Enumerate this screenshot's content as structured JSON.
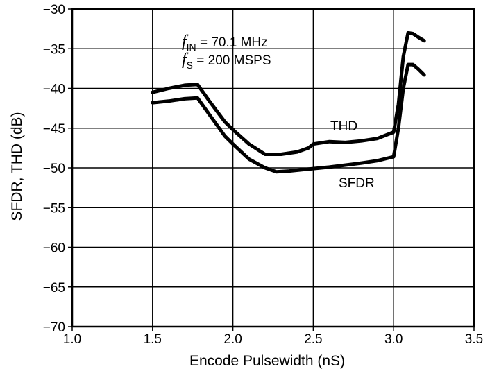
{
  "chart_data": {
    "type": "line",
    "title": "",
    "xlabel": "Encode Pulsewidth (nS)",
    "ylabel": "SFDR, THD (dB)",
    "xlim": [
      1.0,
      3.5
    ],
    "ylim": [
      -70,
      -30
    ],
    "xticks": [
      "1.0",
      "1.5",
      "2.0",
      "2.5",
      "3.0",
      "3.5"
    ],
    "yticks": [
      "−30",
      "−35",
      "−40",
      "−45",
      "−50",
      "−55",
      "−60",
      "−65",
      "−70"
    ],
    "grid": true,
    "annotation": {
      "fin_symbol": "f",
      "fin_sub": "IN",
      "fin_value": " = 70.1 MHz",
      "fs_symbol": "f",
      "fs_sub": "S",
      "fs_value": " = 200 MSPS"
    },
    "series": [
      {
        "name": "THD",
        "x": [
          1.5,
          1.6,
          1.7,
          1.78,
          1.85,
          1.95,
          2.0,
          2.1,
          2.2,
          2.3,
          2.4,
          2.47,
          2.5,
          2.6,
          2.7,
          2.8,
          2.9,
          3.0,
          3.03,
          3.06,
          3.09,
          3.12,
          3.15,
          3.19
        ],
        "y": [
          -40.5,
          -40.0,
          -39.6,
          -39.5,
          -41.5,
          -44.2,
          -45.2,
          -47.0,
          -48.3,
          -48.3,
          -48.0,
          -47.5,
          -47.0,
          -46.7,
          -46.8,
          -46.6,
          -46.3,
          -45.5,
          -42.0,
          -36.0,
          -33.0,
          -33.1,
          -33.5,
          -34.0
        ]
      },
      {
        "name": "SFDR",
        "x": [
          1.5,
          1.6,
          1.7,
          1.78,
          1.85,
          1.95,
          2.0,
          2.1,
          2.2,
          2.27,
          2.35,
          2.45,
          2.6,
          2.8,
          2.9,
          3.0,
          3.03,
          3.06,
          3.09,
          3.12,
          3.15,
          3.19
        ],
        "y": [
          -41.8,
          -41.6,
          -41.3,
          -41.2,
          -43.2,
          -46.0,
          -47.0,
          -48.9,
          -50.0,
          -50.5,
          -50.4,
          -50.2,
          -49.9,
          -49.4,
          -49.1,
          -48.6,
          -45.0,
          -40.0,
          -37.0,
          -37.0,
          -37.5,
          -38.3
        ]
      }
    ],
    "series_labels": [
      "THD",
      "SFDR"
    ]
  }
}
